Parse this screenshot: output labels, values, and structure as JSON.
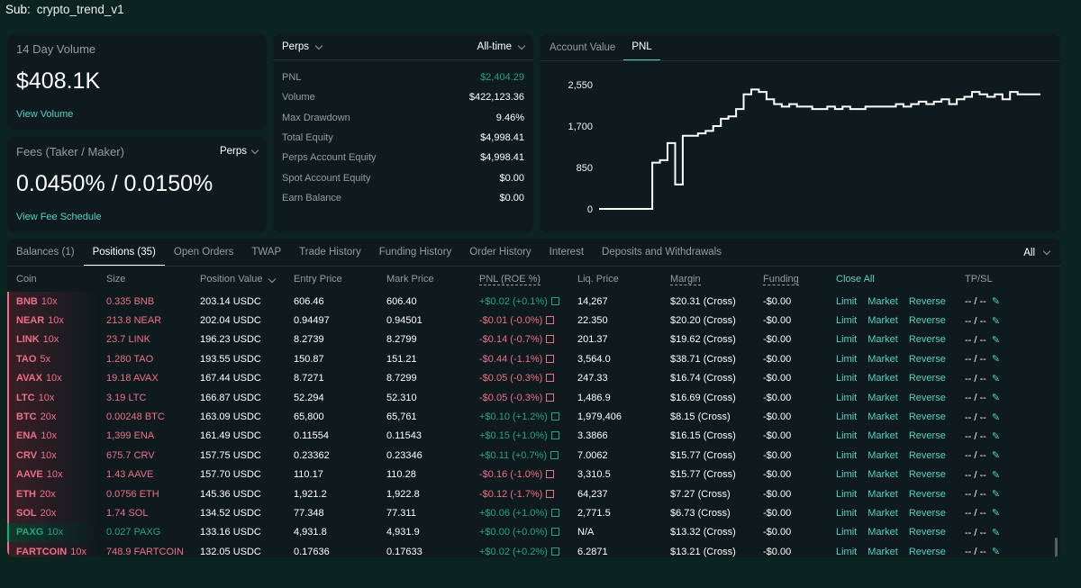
{
  "sub": {
    "label": "Sub:",
    "value": "crypto_trend_v1"
  },
  "volume_card": {
    "title": "14 Day Volume",
    "value": "$408.1K",
    "link": "View Volume"
  },
  "fees_card": {
    "title": "Fees (Taker / Maker)",
    "dropdown": "Perps",
    "value": "0.0450% / 0.0150%",
    "link": "View Fee Schedule"
  },
  "stats_card": {
    "market_dropdown": "Perps",
    "range_dropdown": "All-time",
    "rows": [
      {
        "label": "PNL",
        "value": "$2,404.29"
      },
      {
        "label": "Volume",
        "value": "$422,123.36"
      },
      {
        "label": "Max Drawdown",
        "value": "9.46%"
      },
      {
        "label": "Total Equity",
        "value": "$4,998.41"
      },
      {
        "label": "Perps Account Equity",
        "value": "$4,998.41"
      },
      {
        "label": "Spot Account Equity",
        "value": "$0.00"
      },
      {
        "label": "Earn Balance",
        "value": "$0.00"
      }
    ]
  },
  "chart_tabs": [
    "Account Value",
    "PNL"
  ],
  "chart_data": {
    "type": "line",
    "title": "",
    "xlabel": "",
    "ylabel": "",
    "ylim": [
      0,
      2550
    ],
    "yticks": [
      "2,550",
      "1,700",
      "850",
      "0"
    ],
    "ytick_values": [
      2550,
      1700,
      850,
      0
    ],
    "series": [
      {
        "values": [
          0,
          0,
          0,
          0,
          0,
          0,
          0,
          950,
          1000,
          1350,
          500,
          1500,
          1500,
          1550,
          1600,
          1700,
          1850,
          1900,
          2050,
          2350,
          2450,
          2400,
          2250,
          2150,
          2100,
          2150,
          2100,
          2100,
          2050,
          2050,
          2100,
          2050,
          2100,
          2050,
          2050,
          2100,
          2100,
          2100,
          2100,
          2150,
          2100,
          2150,
          2200,
          2150,
          2200,
          2250,
          2150,
          2250,
          2300,
          2400,
          2350,
          2300,
          2350,
          2250,
          2400,
          2350,
          2350,
          2350
        ]
      }
    ]
  },
  "table_tabs": [
    "Balances (1)",
    "Positions (35)",
    "Open Orders",
    "TWAP",
    "Trade History",
    "Funding History",
    "Order History",
    "Interest",
    "Deposits and Withdrawals"
  ],
  "table_filter": "All",
  "columns": [
    "Coin",
    "Size",
    "Position Value",
    "Entry Price",
    "Mark Price",
    "PNL (ROE %)",
    "Liq. Price",
    "Margin",
    "Funding",
    "Close All",
    "TP/SL"
  ],
  "actions": {
    "limit": "Limit",
    "market": "Market",
    "reverse": "Reverse",
    "tpsl": "-- / --"
  },
  "positions": [
    {
      "coin": "BNB",
      "lev": "10x",
      "size": "0.335 BNB",
      "value": "203.14 USDC",
      "entry": "606.46",
      "mark": "606.40",
      "pnl": "+$0.02 (+0.1%)",
      "liq": "14,267",
      "margin": "$20.31 (Cross)",
      "funding": "-$0.00",
      "side": "short"
    },
    {
      "coin": "NEAR",
      "lev": "10x",
      "size": "213.8 NEAR",
      "value": "202.04 USDC",
      "entry": "0.94497",
      "mark": "0.94501",
      "pnl": "-$0.01 (-0.0%)",
      "liq": "22.350",
      "margin": "$20.20 (Cross)",
      "funding": "-$0.00",
      "side": "short"
    },
    {
      "coin": "LINK",
      "lev": "10x",
      "size": "23.7 LINK",
      "value": "196.23 USDC",
      "entry": "8.2739",
      "mark": "8.2799",
      "pnl": "-$0.14 (-0.7%)",
      "liq": "201.37",
      "margin": "$19.62 (Cross)",
      "funding": "-$0.00",
      "side": "short"
    },
    {
      "coin": "TAO",
      "lev": "5x",
      "size": "1.280 TAO",
      "value": "193.55 USDC",
      "entry": "150.87",
      "mark": "151.21",
      "pnl": "-$0.44 (-1.1%)",
      "liq": "3,564.0",
      "margin": "$38.71 (Cross)",
      "funding": "-$0.00",
      "side": "short"
    },
    {
      "coin": "AVAX",
      "lev": "10x",
      "size": "19.18 AVAX",
      "value": "167.44 USDC",
      "entry": "8.7271",
      "mark": "8.7299",
      "pnl": "-$0.05 (-0.3%)",
      "liq": "247.33",
      "margin": "$16.74 (Cross)",
      "funding": "-$0.00",
      "side": "short"
    },
    {
      "coin": "LTC",
      "lev": "10x",
      "size": "3.19 LTC",
      "value": "166.87 USDC",
      "entry": "52.294",
      "mark": "52.310",
      "pnl": "-$0.05 (-0.3%)",
      "liq": "1,486.9",
      "margin": "$16.69 (Cross)",
      "funding": "-$0.00",
      "side": "short"
    },
    {
      "coin": "BTC",
      "lev": "20x",
      "size": "0.00248 BTC",
      "value": "163.09 USDC",
      "entry": "65,800",
      "mark": "65,761",
      "pnl": "+$0.10 (+1.2%)",
      "liq": "1,979,406",
      "margin": "$8.15 (Cross)",
      "funding": "-$0.00",
      "side": "short"
    },
    {
      "coin": "ENA",
      "lev": "10x",
      "size": "1,399 ENA",
      "value": "161.49 USDC",
      "entry": "0.11554",
      "mark": "0.11543",
      "pnl": "+$0.15 (+1.0%)",
      "liq": "3.3866",
      "margin": "$16.15 (Cross)",
      "funding": "-$0.00",
      "side": "short"
    },
    {
      "coin": "CRV",
      "lev": "10x",
      "size": "675.7 CRV",
      "value": "157.75 USDC",
      "entry": "0.23362",
      "mark": "0.23346",
      "pnl": "+$0.11 (+0.7%)",
      "liq": "7.0062",
      "margin": "$15.77 (Cross)",
      "funding": "-$0.00",
      "side": "short"
    },
    {
      "coin": "AAVE",
      "lev": "10x",
      "size": "1.43 AAVE",
      "value": "157.70 USDC",
      "entry": "110.17",
      "mark": "110.28",
      "pnl": "-$0.16 (-1.0%)",
      "liq": "3,310.5",
      "margin": "$15.77 (Cross)",
      "funding": "-$0.00",
      "side": "short"
    },
    {
      "coin": "ETH",
      "lev": "20x",
      "size": "0.0756 ETH",
      "value": "145.36 USDC",
      "entry": "1,921.2",
      "mark": "1,922.8",
      "pnl": "-$0.12 (-1.7%)",
      "liq": "64,237",
      "margin": "$7.27 (Cross)",
      "funding": "-$0.00",
      "side": "short"
    },
    {
      "coin": "SOL",
      "lev": "20x",
      "size": "1.74 SOL",
      "value": "134.52 USDC",
      "entry": "77.348",
      "mark": "77.311",
      "pnl": "+$0.06 (+1.0%)",
      "liq": "2,771.5",
      "margin": "$6.73 (Cross)",
      "funding": "-$0.00",
      "side": "short"
    },
    {
      "coin": "PAXG",
      "lev": "10x",
      "size": "0.027 PAXG",
      "value": "133.16 USDC",
      "entry": "4,931.8",
      "mark": "4,931.9",
      "pnl": "+$0.00 (+0.0%)",
      "liq": "N/A",
      "margin": "$13.32 (Cross)",
      "funding": "-$0.00",
      "side": "long"
    },
    {
      "coin": "FARTCOIN",
      "lev": "10x",
      "size": "748.9 FARTCOIN",
      "value": "132.05 USDC",
      "entry": "0.17636",
      "mark": "0.17633",
      "pnl": "+$0.02 (+0.2%)",
      "liq": "6.2871",
      "margin": "$13.21 (Cross)",
      "funding": "-$0.00",
      "side": "short"
    }
  ],
  "colors": {
    "accent": "#50d2c1",
    "long": "#1fa67d",
    "short": "#ed7088",
    "background": "#0b2420",
    "panel": "#0f1a1f"
  }
}
